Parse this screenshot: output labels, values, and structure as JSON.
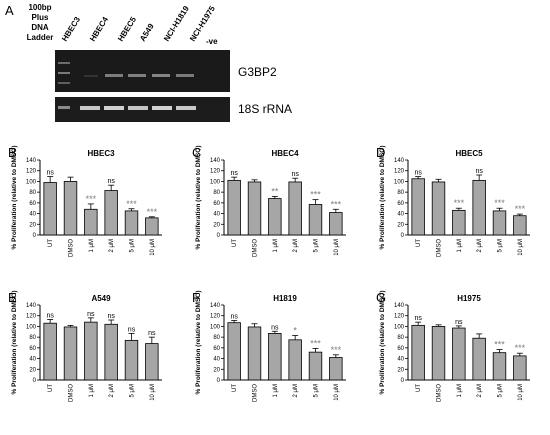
{
  "gel": {
    "panel_label": "A",
    "ladder_label": [
      "100bp",
      "Plus",
      "DNA",
      "Ladder"
    ],
    "lanes": [
      "HBEC3",
      "HBEC4",
      "HBEC5",
      "A549",
      "NCI-H1819",
      "NCI-H1975",
      "-ve"
    ],
    "band_labels": [
      "G3BP2",
      "18S rRNA"
    ]
  },
  "chart_data": [
    {
      "type": "bar",
      "panel": "B",
      "title": "HBEC3",
      "ylabel": "% Proliferation (relative to DMSO)",
      "categories": [
        "UT",
        "DMSO",
        "1 μM",
        "2 μM",
        "5 μM",
        "10 μM"
      ],
      "values": [
        98,
        100,
        48,
        83,
        45,
        32
      ],
      "errors": [
        11,
        8,
        10,
        10,
        4,
        2
      ],
      "annotations": [
        "ns",
        "",
        "***",
        "ns",
        "***",
        "***"
      ],
      "ylim": [
        0,
        140
      ],
      "yticks": [
        0,
        20,
        40,
        60,
        80,
        100,
        120,
        140
      ],
      "bar_color": "#a6a6a6"
    },
    {
      "type": "bar",
      "panel": "C",
      "title": "HBEC4",
      "ylabel": "% Proliferation (relative to DMSO)",
      "categories": [
        "UT",
        "DMSO",
        "1 μM",
        "2 μM",
        "5 μM",
        "10 μM"
      ],
      "values": [
        102,
        99,
        68,
        99,
        57,
        42
      ],
      "errors": [
        6,
        4,
        4,
        7,
        9,
        6
      ],
      "annotations": [
        "ns",
        "",
        "**",
        "ns",
        "***",
        "***"
      ],
      "ylim": [
        0,
        140
      ],
      "yticks": [
        0,
        20,
        40,
        60,
        80,
        100,
        120,
        140
      ],
      "bar_color": "#a6a6a6"
    },
    {
      "type": "bar",
      "panel": "D",
      "title": "HBEC5",
      "ylabel": "% Proliferation (relative to DMSO)",
      "categories": [
        "UT",
        "DMSO",
        "1 μM",
        "2 μM",
        "5 μM",
        "10 μM"
      ],
      "values": [
        105,
        99,
        46,
        102,
        45,
        36
      ],
      "errors": [
        4,
        5,
        4,
        10,
        5,
        3
      ],
      "annotations": [
        "ns",
        "",
        "***",
        "ns",
        "***",
        "***"
      ],
      "ylim": [
        0,
        140
      ],
      "yticks": [
        0,
        20,
        40,
        60,
        80,
        100,
        120,
        140
      ],
      "bar_color": "#a6a6a6"
    },
    {
      "type": "bar",
      "panel": "E",
      "title": "A549",
      "ylabel": "% Proliferation (relative to DMSO)",
      "categories": [
        "UT",
        "DMSO",
        "1 μM",
        "2 μM",
        "5 μM",
        "10 μM"
      ],
      "values": [
        106,
        99,
        108,
        104,
        74,
        68
      ],
      "errors": [
        7,
        3,
        8,
        8,
        13,
        12
      ],
      "annotations": [
        "ns",
        "",
        "ns",
        "ns",
        "ns",
        "ns"
      ],
      "ylim": [
        0,
        140
      ],
      "yticks": [
        0,
        20,
        40,
        60,
        80,
        100,
        120,
        140
      ],
      "bar_color": "#a6a6a6"
    },
    {
      "type": "bar",
      "panel": "F",
      "title": "H1819",
      "ylabel": "% Proliferation (relative to DMSO)",
      "categories": [
        "UT",
        "DMSO",
        "1 μM",
        "2 μM",
        "5 μM",
        "10 μM"
      ],
      "values": [
        107,
        99,
        87,
        75,
        52,
        42
      ],
      "errors": [
        4,
        6,
        4,
        8,
        7,
        5
      ],
      "annotations": [
        "ns",
        "",
        "ns",
        "*",
        "***",
        "***"
      ],
      "ylim": [
        0,
        140
      ],
      "yticks": [
        0,
        20,
        40,
        60,
        80,
        100,
        120,
        140
      ],
      "bar_color": "#a6a6a6"
    },
    {
      "type": "bar",
      "panel": "G",
      "title": "H1975",
      "ylabel": "% Proliferation (relative to DMSO)",
      "categories": [
        "UT",
        "DMSO",
        "1 μM",
        "2 μM",
        "5 μM",
        "10 μM"
      ],
      "values": [
        102,
        100,
        97,
        78,
        51,
        45
      ],
      "errors": [
        6,
        3,
        4,
        8,
        6,
        5
      ],
      "annotations": [
        "ns",
        "",
        "ns",
        "",
        "***",
        "***"
      ],
      "ylim": [
        0,
        140
      ],
      "yticks": [
        0,
        20,
        40,
        60,
        80,
        100,
        120,
        140
      ],
      "bar_color": "#a6a6a6"
    }
  ]
}
